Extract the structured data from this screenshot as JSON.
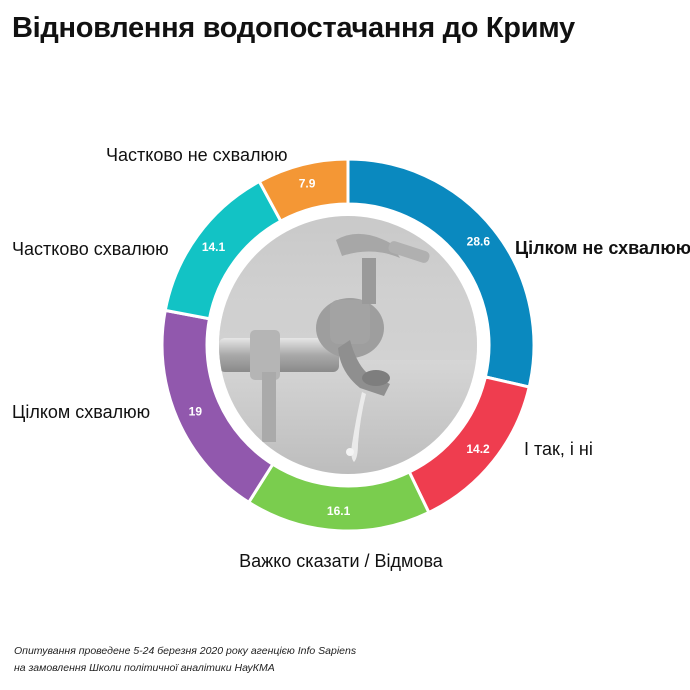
{
  "title": "Відновлення водопостачання до Криму",
  "footnote": {
    "line1": "Опитування проведене 5-24 березня 2020 року агенцією Info Sapiens",
    "line2": "на замовлення Школи політичної аналітики НауКМА"
  },
  "chart_data": {
    "type": "pie",
    "style": "donut",
    "center_image": "photo of a dripping water tap",
    "slices": [
      {
        "label": "Цілком не схвалюю",
        "value": 28.6,
        "display": "28.6",
        "color": "#0a89bf",
        "label_bold": true
      },
      {
        "label": "І так, і ні",
        "value": 14.2,
        "display": "14.2",
        "color": "#ef3d4f",
        "label_bold": false
      },
      {
        "label": "Важко сказати / Відмова",
        "value": 16.1,
        "display": "16.1",
        "color": "#7acd4e",
        "label_bold": false
      },
      {
        "label": "Цілком схвалюю",
        "value": 19,
        "display": "19",
        "color": "#9158ad",
        "label_bold": false
      },
      {
        "label": "Частково схвалюю",
        "value": 14.1,
        "display": "14.1",
        "color": "#12c3c5",
        "label_bold": false
      },
      {
        "label": "Частково не схвалюю",
        "value": 7.9,
        "display": "7.9",
        "color": "#f49735",
        "label_bold": false
      }
    ]
  }
}
